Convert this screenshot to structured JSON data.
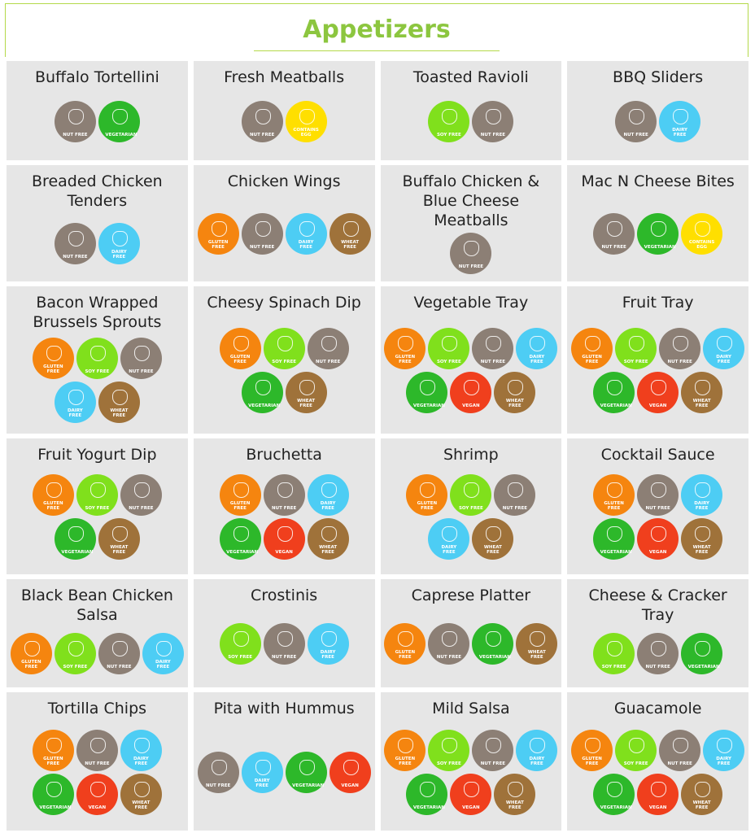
{
  "header": {
    "title": "Appetizers"
  },
  "badge_colors": {
    "NUT FREE": "#8c7f75",
    "VEGETARIAN": "#2db82a",
    "CONTAINS EGG": "#ffdf00",
    "SOY FREE": "#80e01c",
    "DAIRY FREE": "#4dcdf4",
    "GLUTEN FREE": "#f5850f",
    "WHEAT FREE": "#9f723a",
    "VEGAN": "#f03f1d"
  },
  "items": [
    {
      "name": "Buffalo Tortellini",
      "badges": [
        "NUT FREE",
        "VEGETARIAN"
      ]
    },
    {
      "name": "Fresh Meatballs",
      "badges": [
        "NUT FREE",
        "CONTAINS EGG"
      ]
    },
    {
      "name": "Toasted Ravioli",
      "badges": [
        "SOY FREE",
        "NUT FREE"
      ]
    },
    {
      "name": "BBQ Sliders",
      "badges": [
        "NUT FREE",
        "DAIRY FREE"
      ]
    },
    {
      "name": "Breaded Chicken Tenders",
      "badges": [
        "NUT FREE",
        "DAIRY FREE"
      ]
    },
    {
      "name": "Chicken Wings",
      "badges": [
        "GLUTEN FREE",
        "NUT FREE",
        "DAIRY FREE",
        "WHEAT FREE"
      ]
    },
    {
      "name": "Buffalo Chicken & Blue Cheese Meatballs",
      "badges": [
        "NUT FREE"
      ]
    },
    {
      "name": "Mac N Cheese Bites",
      "badges": [
        "NUT FREE",
        "VEGETARIAN",
        "CONTAINS EGG"
      ]
    },
    {
      "name": "Bacon Wrapped Brussels Sprouts",
      "badges": [
        "GLUTEN FREE",
        "SOY FREE",
        "NUT FREE",
        "DAIRY FREE",
        "WHEAT FREE"
      ]
    },
    {
      "name": "Cheesy Spinach Dip",
      "badges": [
        "GLUTEN FREE",
        "SOY FREE",
        "NUT FREE",
        "VEGETARIAN",
        "WHEAT FREE"
      ]
    },
    {
      "name": "Vegetable Tray",
      "badges": [
        "GLUTEN FREE",
        "SOY FREE",
        "NUT FREE",
        "DAIRY FREE",
        "VEGETARIAN",
        "VEGAN",
        "WHEAT FREE"
      ]
    },
    {
      "name": "Fruit Tray",
      "badges": [
        "GLUTEN FREE",
        "SOY FREE",
        "NUT FREE",
        "DAIRY FREE",
        "VEGETARIAN",
        "VEGAN",
        "WHEAT FREE"
      ]
    },
    {
      "name": "Fruit Yogurt Dip",
      "badges": [
        "GLUTEN FREE",
        "SOY FREE",
        "NUT FREE",
        "VEGETARIAN",
        "WHEAT FREE"
      ]
    },
    {
      "name": "Bruchetta",
      "badges": [
        "GLUTEN FREE",
        "NUT FREE",
        "DAIRY FREE",
        "VEGETARIAN",
        "VEGAN",
        "WHEAT FREE"
      ]
    },
    {
      "name": "Shrimp",
      "badges": [
        "GLUTEN FREE",
        "SOY FREE",
        "NUT FREE",
        "DAIRY FREE",
        "WHEAT FREE"
      ]
    },
    {
      "name": "Cocktail Sauce",
      "badges": [
        "GLUTEN FREE",
        "NUT FREE",
        "DAIRY FREE",
        "VEGETARIAN",
        "VEGAN",
        "WHEAT FREE"
      ]
    },
    {
      "name": "Black Bean Chicken Salsa",
      "badges": [
        "GLUTEN FREE",
        "SOY FREE",
        "NUT FREE",
        "DAIRY FREE"
      ]
    },
    {
      "name": "Crostinis",
      "badges": [
        "SOY FREE",
        "NUT FREE",
        "DAIRY FREE"
      ]
    },
    {
      "name": "Caprese Platter",
      "badges": [
        "GLUTEN FREE",
        "NUT FREE",
        "VEGETARIAN",
        "WHEAT FREE"
      ]
    },
    {
      "name": "Cheese & Cracker Tray",
      "badges": [
        "SOY FREE",
        "NUT FREE",
        "VEGETARIAN"
      ]
    },
    {
      "name": "Tortilla Chips",
      "badges": [
        "GLUTEN FREE",
        "NUT FREE",
        "DAIRY FREE",
        "VEGETARIAN",
        "VEGAN",
        "WHEAT FREE"
      ]
    },
    {
      "name": "Pita with Hummus",
      "badges": [
        "NUT FREE",
        "DAIRY FREE",
        "VEGETARIAN",
        "VEGAN"
      ]
    },
    {
      "name": "Mild Salsa",
      "badges": [
        "GLUTEN FREE",
        "SOY FREE",
        "NUT FREE",
        "DAIRY FREE",
        "VEGETARIAN",
        "VEGAN",
        "WHEAT FREE"
      ]
    },
    {
      "name": "Guacamole",
      "badges": [
        "GLUTEN FREE",
        "SOY FREE",
        "NUT FREE",
        "DAIRY FREE",
        "VEGETARIAN",
        "VEGAN",
        "WHEAT FREE"
      ]
    }
  ]
}
